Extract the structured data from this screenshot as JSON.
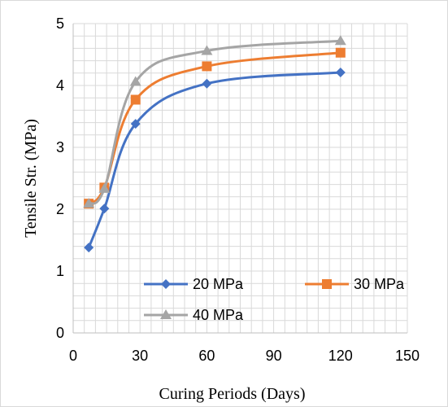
{
  "chart_data": {
    "type": "line",
    "title": "",
    "xlabel": "Curing Periods (Days)",
    "ylabel": "Tensile Str. (MPa)",
    "xlim": [
      0,
      150
    ],
    "ylim": [
      0,
      5
    ],
    "x_ticks": [
      "0",
      "30",
      "60",
      "90",
      "120",
      "150"
    ],
    "y_ticks": [
      "0",
      "1",
      "2",
      "3",
      "4",
      "5"
    ],
    "grid": true,
    "legend_position": "bottom inside plot",
    "series": [
      {
        "name": "20 MPa",
        "color": "#4472C4",
        "marker": "diamond",
        "x": [
          7,
          14,
          28,
          60,
          120
        ],
        "y": [
          1.38,
          2.01,
          3.38,
          4.03,
          4.21
        ]
      },
      {
        "name": "30 MPa",
        "color": "#ED7D31",
        "marker": "square",
        "x": [
          7,
          14,
          28,
          60,
          120
        ],
        "y": [
          2.09,
          2.35,
          3.77,
          4.31,
          4.53
        ]
      },
      {
        "name": "40 MPa",
        "color": "#A5A5A5",
        "marker": "triangle",
        "x": [
          7,
          14,
          28,
          60,
          120
        ],
        "y": [
          2.09,
          2.33,
          4.06,
          4.56,
          4.72
        ]
      }
    ]
  }
}
